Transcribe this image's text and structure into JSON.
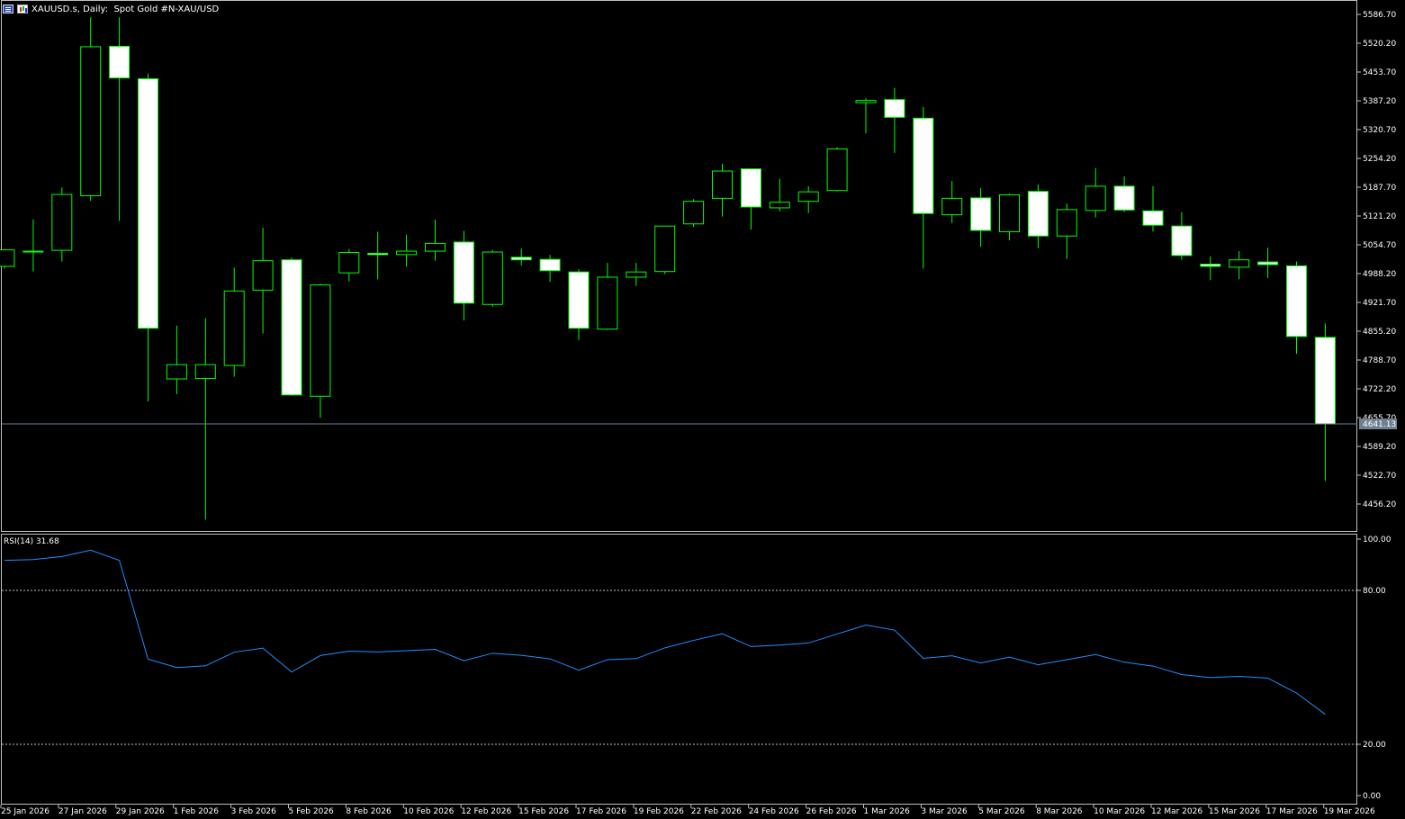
{
  "header": {
    "symbol": "XAUUSD.s",
    "timeframe": "Daily:",
    "description": "Spot Gold #N-XAU/USD"
  },
  "icons": [
    "menu-icon",
    "chart-icon"
  ],
  "colors": {
    "background": "#000000",
    "candle_border": "#00ff00",
    "candle_body": "#ffffff",
    "rsi_line": "#1e90ff",
    "current_price_line": "#708090",
    "level_lines": "#c0c0c0"
  },
  "current_price": "4641.13",
  "rsi": {
    "label": "RSI(14) 31.68",
    "levels": [
      80,
      20
    ],
    "axis_ticks": [
      "100.00",
      "80.00",
      "20.00",
      "0.00"
    ]
  },
  "chart_data": {
    "type": "candlestick",
    "symbol": "XAUUSD.s",
    "timeframe": "Daily",
    "price_axis_ticks": [
      "5586.70",
      "5520.20",
      "5453.70",
      "5387.20",
      "5320.70",
      "5254.20",
      "5187.70",
      "5121.20",
      "5054.70",
      "4988.20",
      "4921.70",
      "4855.20",
      "4788.70",
      "4722.20",
      "4655.70",
      "4589.20",
      "4522.70",
      "4456.20"
    ],
    "x_tick_labels": [
      "25 Jan 2026",
      "27 Jan 2026",
      "29 Jan 2026",
      "1 Feb 2026",
      "3 Feb 2026",
      "5 Feb 2026",
      "8 Feb 2026",
      "10 Feb 2026",
      "12 Feb 2026",
      "15 Feb 2026",
      "17 Feb 2026",
      "19 Feb 2026",
      "22 Feb 2026",
      "24 Feb 2026",
      "26 Feb 2026",
      "1 Mar 2026",
      "3 Mar 2026",
      "5 Mar 2026",
      "8 Mar 2026",
      "10 Mar 2026",
      "12 Mar 2026",
      "15 Mar 2026",
      "17 Mar 2026",
      "19 Mar 2026"
    ],
    "ylim": [
      4420,
      5610
    ],
    "candles": [
      {
        "o": 5005,
        "h": 5045,
        "l": 5000,
        "c": 5043
      },
      {
        "o": 5038,
        "h": 5113,
        "l": 4993,
        "c": 5040
      },
      {
        "o": 5042,
        "h": 5187,
        "l": 5016,
        "c": 5171
      },
      {
        "o": 5168,
        "h": 5580,
        "l": 5156,
        "c": 5512
      },
      {
        "o": 5513,
        "h": 5580,
        "l": 5110,
        "c": 5440
      },
      {
        "o": 5438,
        "h": 5450,
        "l": 4693,
        "c": 4862
      },
      {
        "o": 4745,
        "h": 4868,
        "l": 4710,
        "c": 4778
      },
      {
        "o": 4746,
        "h": 4885,
        "l": 4420,
        "c": 4778
      },
      {
        "o": 4776,
        "h": 5002,
        "l": 4750,
        "c": 4948
      },
      {
        "o": 4950,
        "h": 5094,
        "l": 4850,
        "c": 5018
      },
      {
        "o": 5020,
        "h": 5025,
        "l": 4706,
        "c": 4708
      },
      {
        "o": 4705,
        "h": 4965,
        "l": 4655,
        "c": 4962
      },
      {
        "o": 4990,
        "h": 5045,
        "l": 4970,
        "c": 5037
      },
      {
        "o": 5035,
        "h": 5085,
        "l": 4975,
        "c": 5032
      },
      {
        "o": 5032,
        "h": 5078,
        "l": 5005,
        "c": 5040
      },
      {
        "o": 5040,
        "h": 5113,
        "l": 5018,
        "c": 5058
      },
      {
        "o": 5061,
        "h": 5087,
        "l": 4880,
        "c": 4920
      },
      {
        "o": 4917,
        "h": 5043,
        "l": 4912,
        "c": 5038
      },
      {
        "o": 5026,
        "h": 5046,
        "l": 5007,
        "c": 5020
      },
      {
        "o": 5021,
        "h": 5031,
        "l": 4969,
        "c": 4995
      },
      {
        "o": 4992,
        "h": 4998,
        "l": 4835,
        "c": 4862
      },
      {
        "o": 4860,
        "h": 5013,
        "l": 4858,
        "c": 4980
      },
      {
        "o": 4980,
        "h": 5013,
        "l": 4960,
        "c": 4992
      },
      {
        "o": 4993,
        "h": 5098,
        "l": 4987,
        "c": 5098
      },
      {
        "o": 5103,
        "h": 5160,
        "l": 5096,
        "c": 5155
      },
      {
        "o": 5162,
        "h": 5242,
        "l": 5120,
        "c": 5225
      },
      {
        "o": 5230,
        "h": 5230,
        "l": 5090,
        "c": 5142
      },
      {
        "o": 5140,
        "h": 5207,
        "l": 5132,
        "c": 5153
      },
      {
        "o": 5155,
        "h": 5190,
        "l": 5128,
        "c": 5177
      },
      {
        "o": 5180,
        "h": 5280,
        "l": 5178,
        "c": 5276
      },
      {
        "o": 5383,
        "h": 5393,
        "l": 5312,
        "c": 5388
      },
      {
        "o": 5390,
        "h": 5417,
        "l": 5267,
        "c": 5349
      },
      {
        "o": 5347,
        "h": 5373,
        "l": 5000,
        "c": 5127
      },
      {
        "o": 5124,
        "h": 5202,
        "l": 5105,
        "c": 5162
      },
      {
        "o": 5163,
        "h": 5186,
        "l": 5050,
        "c": 5088
      },
      {
        "o": 5085,
        "h": 5173,
        "l": 5065,
        "c": 5170
      },
      {
        "o": 5178,
        "h": 5194,
        "l": 5047,
        "c": 5075
      },
      {
        "o": 5075,
        "h": 5150,
        "l": 5022,
        "c": 5136
      },
      {
        "o": 5134,
        "h": 5232,
        "l": 5118,
        "c": 5190
      },
      {
        "o": 5190,
        "h": 5213,
        "l": 5130,
        "c": 5135
      },
      {
        "o": 5133,
        "h": 5190,
        "l": 5085,
        "c": 5100
      },
      {
        "o": 5098,
        "h": 5130,
        "l": 5020,
        "c": 5030
      },
      {
        "o": 5010,
        "h": 5028,
        "l": 4973,
        "c": 5005
      },
      {
        "o": 5003,
        "h": 5040,
        "l": 4975,
        "c": 5020
      },
      {
        "o": 5015,
        "h": 5048,
        "l": 4978,
        "c": 5009
      },
      {
        "o": 5006,
        "h": 5016,
        "l": 4803,
        "c": 4843
      },
      {
        "o": 4841,
        "h": 4873,
        "l": 4509,
        "c": 4641
      }
    ],
    "rsi_values": [
      91.7,
      92.0,
      93.2,
      95.7,
      91.7,
      53.2,
      49.9,
      50.6,
      55.9,
      57.5,
      48.2,
      54.6,
      56.3,
      56.0,
      56.5,
      57.0,
      52.6,
      55.5,
      54.7,
      53.3,
      48.9,
      53.0,
      53.4,
      57.6,
      60.5,
      63.1,
      58.1,
      58.7,
      59.5,
      63.0,
      66.5,
      64.5,
      53.5,
      54.5,
      51.7,
      54.0,
      51.0,
      53.0,
      55.0,
      52.0,
      50.5,
      47.2,
      46.0,
      46.5,
      45.8,
      40.0,
      31.68
    ]
  }
}
